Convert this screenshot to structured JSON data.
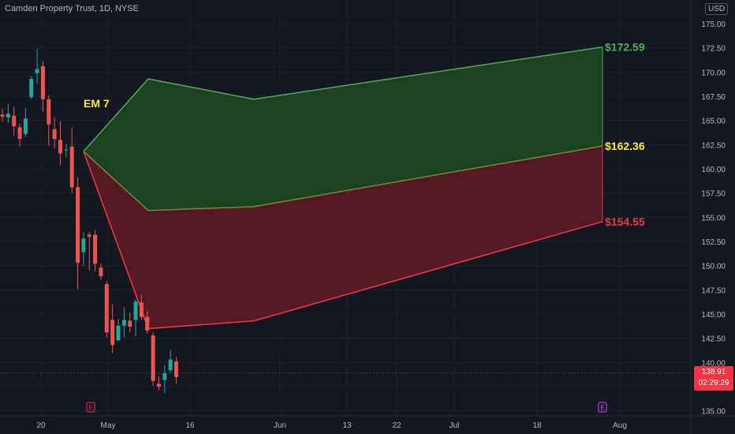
{
  "header": {
    "title": "Camden Property Trust, 1D, NYSE",
    "currency": "USD"
  },
  "last_price": {
    "value": "138.91",
    "countdown": "02:29:29"
  },
  "colors": {
    "background": "#131722",
    "up": "#26a69a",
    "down": "#ef5350",
    "green_band": "#4caf50",
    "red_band": "#f23645",
    "mid_label": "#ffeb3b",
    "grid": "#1e222d",
    "text": "#b2b5be"
  },
  "chart_data": {
    "type": "candlestick",
    "title": "Camden Property Trust, 1D, NYSE",
    "ylim": [
      134.5,
      177
    ],
    "y_ticks": [
      "175.00",
      "172.50",
      "170.00",
      "167.50",
      "165.00",
      "162.50",
      "160.00",
      "157.50",
      "155.00",
      "152.50",
      "150.00",
      "147.50",
      "145.00",
      "142.50",
      "140.00",
      "137.50",
      "135.00"
    ],
    "x_ticks": [
      "20",
      "May",
      "16",
      "Jun",
      "13",
      "22",
      "Jul",
      "18",
      "Aug"
    ],
    "candles": [
      {
        "o": 165.6,
        "h": 166.2,
        "l": 164.9,
        "c": 165.4
      },
      {
        "o": 165.3,
        "h": 166.7,
        "l": 164.8,
        "c": 165.7
      },
      {
        "o": 165.5,
        "h": 166.4,
        "l": 163.4,
        "c": 164.4
      },
      {
        "o": 164.3,
        "h": 164.7,
        "l": 162.3,
        "c": 163.1
      },
      {
        "o": 163.6,
        "h": 166.3,
        "l": 163.3,
        "c": 165.2
      },
      {
        "o": 167.4,
        "h": 169.6,
        "l": 167.2,
        "c": 169.3
      },
      {
        "o": 169.9,
        "h": 172.4,
        "l": 168.8,
        "c": 170.3
      },
      {
        "o": 170.6,
        "h": 171.1,
        "l": 165.9,
        "c": 167.2
      },
      {
        "o": 167.2,
        "h": 167.6,
        "l": 162.4,
        "c": 164.6
      },
      {
        "o": 164.1,
        "h": 165.4,
        "l": 162.1,
        "c": 163.1
      },
      {
        "o": 163.0,
        "h": 164.9,
        "l": 160.4,
        "c": 161.6
      },
      {
        "o": 162.0,
        "h": 162.6,
        "l": 161.2,
        "c": 162.0
      },
      {
        "o": 162.3,
        "h": 164.3,
        "l": 157.5,
        "c": 158.1
      },
      {
        "o": 158.1,
        "h": 159.1,
        "l": 147.6,
        "c": 150.3
      },
      {
        "o": 151.4,
        "h": 153.5,
        "l": 150.0,
        "c": 152.8
      },
      {
        "o": 153.2,
        "h": 153.5,
        "l": 149.5,
        "c": 153.0
      },
      {
        "o": 153.2,
        "h": 153.7,
        "l": 149.4,
        "c": 150.2
      },
      {
        "o": 149.8,
        "h": 150.2,
        "l": 148.5,
        "c": 148.9
      },
      {
        "o": 148.1,
        "h": 148.4,
        "l": 142.6,
        "c": 143.1
      },
      {
        "o": 144.4,
        "h": 146.0,
        "l": 141.0,
        "c": 141.8
      },
      {
        "o": 142.3,
        "h": 144.5,
        "l": 142.2,
        "c": 143.8
      },
      {
        "o": 143.8,
        "h": 145.7,
        "l": 142.6,
        "c": 144.4
      },
      {
        "o": 144.3,
        "h": 145.2,
        "l": 143.1,
        "c": 143.7
      },
      {
        "o": 144.4,
        "h": 146.5,
        "l": 142.7,
        "c": 146.3
      },
      {
        "o": 146.2,
        "h": 147.0,
        "l": 144.4,
        "c": 144.7
      },
      {
        "o": 144.7,
        "h": 145.3,
        "l": 143.0,
        "c": 143.3
      },
      {
        "o": 142.8,
        "h": 143.1,
        "l": 137.6,
        "c": 138.1
      },
      {
        "o": 137.8,
        "h": 138.6,
        "l": 137.1,
        "c": 137.5
      },
      {
        "o": 138.2,
        "h": 139.7,
        "l": 136.8,
        "c": 138.9
      },
      {
        "o": 139.2,
        "h": 141.3,
        "l": 138.9,
        "c": 140.3
      },
      {
        "o": 140.1,
        "h": 140.6,
        "l": 137.8,
        "c": 138.5
      }
    ],
    "expected_move": {
      "label": "EM 7",
      "upper": {
        "label": "$172.59",
        "value": 172.59,
        "path": [
          161.8,
          169.3,
          167.2,
          172.59
        ]
      },
      "mid": {
        "label": "$162.36",
        "value": 162.36,
        "path": [
          161.8,
          155.7,
          156.1,
          162.36
        ]
      },
      "lower": {
        "label": "$154.55",
        "value": 154.55,
        "path": [
          161.8,
          143.5,
          144.3,
          154.55
        ]
      }
    },
    "event_markers": [
      "E",
      "E"
    ],
    "last_price_line": 138.91
  }
}
